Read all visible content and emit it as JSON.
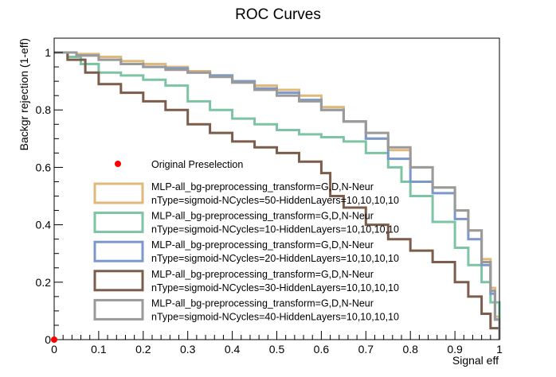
{
  "chart_data": {
    "type": "line",
    "title": "ROC Curves",
    "xlabel": "Signal eff",
    "ylabel": "Backgr rejection (1-eff)",
    "xlim": [
      0,
      1
    ],
    "ylim": [
      0,
      1.05
    ],
    "x_ticks": [
      "0",
      "0.1",
      "0.2",
      "0.3",
      "0.4",
      "0.5",
      "0.6",
      "0.7",
      "0.8",
      "0.9",
      "1"
    ],
    "y_ticks": [
      "0",
      "0.2",
      "0.4",
      "0.6",
      "0.8",
      "1"
    ],
    "grid": false,
    "legend_position": "bottom-left",
    "points": [
      {
        "name": "Original Preselection",
        "x": 0.0,
        "y": 0.0,
        "color": "#ff0000"
      }
    ],
    "series": [
      {
        "name": "MLP-all_bg-preprocessing_transform=G,D,N-Neur",
        "name_line2": "nType=sigmoid-NCycles=50-HiddenLayers=10,10,10,10",
        "color": "#e0b97a",
        "x": [
          0,
          0.05,
          0.1,
          0.15,
          0.2,
          0.25,
          0.3,
          0.35,
          0.4,
          0.45,
          0.5,
          0.55,
          0.6,
          0.65,
          0.7,
          0.75,
          0.8,
          0.85,
          0.9,
          0.93,
          0.96,
          0.98,
          0.99,
          1.0
        ],
        "y": [
          1.0,
          0.995,
          0.985,
          0.97,
          0.96,
          0.95,
          0.935,
          0.92,
          0.9,
          0.885,
          0.87,
          0.85,
          0.81,
          0.76,
          0.7,
          0.66,
          0.6,
          0.53,
          0.45,
          0.38,
          0.28,
          0.18,
          0.08,
          0.0
        ]
      },
      {
        "name": "MLP-all_bg-preprocessing_transform=G,D,N-Neur",
        "name_line2": "nType=sigmoid-NCycles=10-HiddenLayers=10,10,10,10",
        "color": "#7dc4a4",
        "x": [
          0,
          0.03,
          0.06,
          0.1,
          0.15,
          0.2,
          0.25,
          0.3,
          0.35,
          0.4,
          0.45,
          0.5,
          0.55,
          0.6,
          0.65,
          0.7,
          0.75,
          0.78,
          0.8,
          0.85,
          0.9,
          0.93,
          0.96,
          0.98,
          1.0
        ],
        "y": [
          1.0,
          0.985,
          0.96,
          0.93,
          0.92,
          0.905,
          0.885,
          0.83,
          0.8,
          0.77,
          0.75,
          0.73,
          0.715,
          0.705,
          0.69,
          0.65,
          0.6,
          0.55,
          0.5,
          0.41,
          0.32,
          0.26,
          0.2,
          0.13,
          0.0
        ]
      },
      {
        "name": "MLP-all_bg-preprocessing_transform=G,D,N-Neur",
        "name_line2": "nType=sigmoid-NCycles=20-HiddenLayers=10,10,10,10",
        "color": "#7b98cc",
        "x": [
          0,
          0.05,
          0.1,
          0.15,
          0.2,
          0.25,
          0.3,
          0.35,
          0.4,
          0.45,
          0.5,
          0.55,
          0.6,
          0.65,
          0.7,
          0.75,
          0.8,
          0.85,
          0.9,
          0.93,
          0.96,
          0.98,
          0.99,
          1.0
        ],
        "y": [
          1.0,
          0.99,
          0.975,
          0.96,
          0.95,
          0.945,
          0.93,
          0.92,
          0.9,
          0.875,
          0.86,
          0.835,
          0.8,
          0.76,
          0.7,
          0.63,
          0.55,
          0.51,
          0.42,
          0.35,
          0.26,
          0.16,
          0.07,
          0.0
        ]
      },
      {
        "name": "MLP-all_bg-preprocessing_transform=G,D,N-Neur",
        "name_line2": "nType=sigmoid-NCycles=30-HiddenLayers=10,10,10,10",
        "color": "#7c5c4a",
        "x": [
          0,
          0.03,
          0.07,
          0.1,
          0.15,
          0.2,
          0.25,
          0.3,
          0.35,
          0.4,
          0.45,
          0.5,
          0.55,
          0.6,
          0.62,
          0.65,
          0.7,
          0.75,
          0.8,
          0.85,
          0.9,
          0.93,
          0.96,
          0.98,
          1.0
        ],
        "y": [
          1.0,
          0.975,
          0.93,
          0.89,
          0.86,
          0.83,
          0.8,
          0.75,
          0.72,
          0.69,
          0.67,
          0.65,
          0.62,
          0.58,
          0.5,
          0.46,
          0.4,
          0.35,
          0.31,
          0.27,
          0.2,
          0.15,
          0.09,
          0.04,
          0.0
        ]
      },
      {
        "name": "MLP-all_bg-preprocessing_transform=G,D,N-Neur",
        "name_line2": "nType=sigmoid-NCycles=40-HiddenLayers=10,10,10,10",
        "color": "#9a9a9a",
        "x": [
          0,
          0.05,
          0.1,
          0.15,
          0.2,
          0.25,
          0.3,
          0.35,
          0.4,
          0.45,
          0.5,
          0.55,
          0.6,
          0.65,
          0.7,
          0.75,
          0.8,
          0.85,
          0.9,
          0.93,
          0.96,
          0.98,
          0.99,
          1.0
        ],
        "y": [
          1.0,
          0.99,
          0.975,
          0.96,
          0.95,
          0.94,
          0.93,
          0.915,
          0.895,
          0.87,
          0.85,
          0.83,
          0.8,
          0.76,
          0.72,
          0.67,
          0.6,
          0.53,
          0.45,
          0.38,
          0.27,
          0.17,
          0.07,
          0.0
        ]
      }
    ]
  }
}
